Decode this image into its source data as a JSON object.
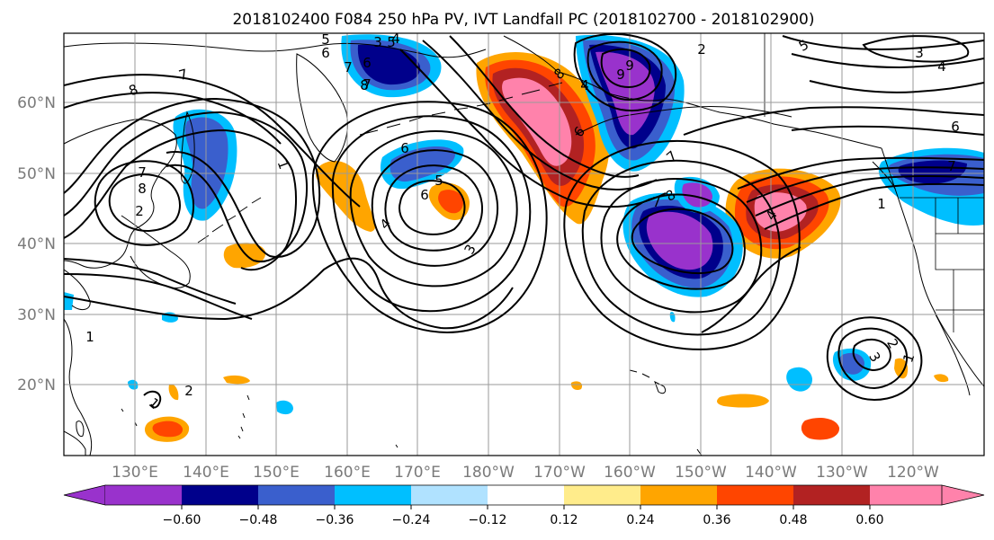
{
  "title": "2018102400 F084 250 hPa PV, IVT Landfall PC (2018102700 - 2018102900)",
  "map": {
    "lat_labels": [
      "60°N",
      "50°N",
      "40°N",
      "30°N",
      "20°N"
    ],
    "lon_labels": [
      "130°E",
      "140°E",
      "150°E",
      "160°E",
      "170°E",
      "180°W",
      "170°W",
      "160°W",
      "150°W",
      "140°W",
      "130°W",
      "120°W"
    ],
    "contour_labels": [
      "8",
      "7",
      "6",
      "5",
      "4",
      "3",
      "2",
      "1",
      "7",
      "8",
      "7",
      "1",
      "4",
      "6",
      "5",
      "3",
      "5",
      "6",
      "7",
      "8",
      "8",
      "7",
      "6",
      "9",
      "7",
      "8",
      "4",
      "3",
      "2",
      "1",
      "3",
      "6",
      "5",
      "4",
      "2",
      "1",
      "6",
      "7",
      "9",
      "4",
      "1",
      "2"
    ]
  },
  "colorbar": {
    "ticks": [
      "−0.60",
      "−0.48",
      "−0.36",
      "−0.24",
      "−0.12",
      "0.12",
      "0.24",
      "0.36",
      "0.48",
      "0.60"
    ],
    "colors": {
      "lt_-0.60": "#9932cc",
      "-0.60_-0.48": "#00008b",
      "-0.48_-0.36": "#3a5fcd",
      "-0.36_-0.24": "#00bfff",
      "-0.24_-0.12": "#b0e2ff",
      "-0.12_0.12": "#ffffff",
      "0.12_0.24": "#ffec8b",
      "0.24_0.36": "#ffa500",
      "0.36_0.48": "#ff4500",
      "0.48_0.60": "#b22222",
      "gt_0.60": "#ff82ab"
    }
  }
}
